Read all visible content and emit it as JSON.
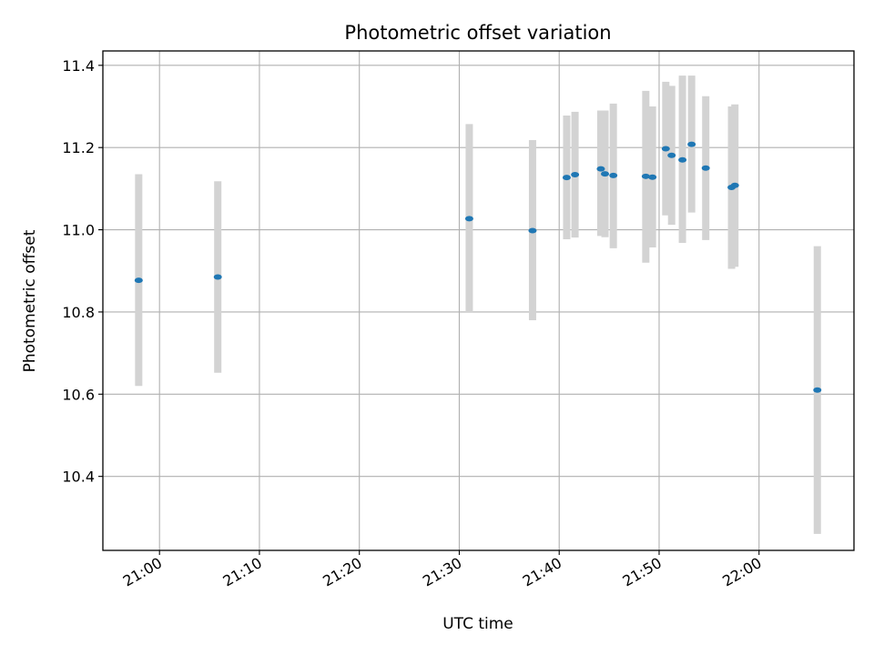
{
  "chart_data": {
    "type": "scatter",
    "title": "Photometric offset variation",
    "xlabel": "UTC time",
    "ylabel": "Photometric offset",
    "x_tick_labels": [
      "21:00",
      "21:10",
      "21:20",
      "21:30",
      "21:40",
      "21:50",
      "22:00"
    ],
    "y_tick_labels": [
      "10.4",
      "10.6",
      "10.8",
      "11.0",
      "11.2",
      "11.4"
    ],
    "y_ticks": [
      10.4,
      10.6,
      10.8,
      11.0,
      11.2,
      11.4
    ],
    "xlim": [
      "20:54:20",
      "22:09:30"
    ],
    "ylim": [
      10.22,
      11.435
    ],
    "grid": true,
    "marker_color": "#1f77b4",
    "errorbar_color": "#d3d3d3",
    "points": [
      {
        "time": "20:57:55",
        "value": 10.877,
        "low": 10.62,
        "high": 11.135
      },
      {
        "time": "21:05:50",
        "value": 10.885,
        "low": 10.652,
        "high": 11.118
      },
      {
        "time": "21:31:00",
        "value": 11.027,
        "low": 10.798,
        "high": 11.257
      },
      {
        "time": "21:37:20",
        "value": 10.998,
        "low": 10.78,
        "high": 11.218
      },
      {
        "time": "21:40:45",
        "value": 11.127,
        "low": 10.977,
        "high": 11.278
      },
      {
        "time": "21:41:35",
        "value": 11.134,
        "low": 10.981,
        "high": 11.287
      },
      {
        "time": "21:44:10",
        "value": 11.148,
        "low": 10.985,
        "high": 11.29
      },
      {
        "time": "21:44:35",
        "value": 11.136,
        "low": 10.982,
        "high": 11.29
      },
      {
        "time": "21:45:25",
        "value": 11.132,
        "low": 10.955,
        "high": 11.307
      },
      {
        "time": "21:48:40",
        "value": 11.13,
        "low": 10.92,
        "high": 11.338
      },
      {
        "time": "21:49:20",
        "value": 11.128,
        "low": 10.957,
        "high": 11.3
      },
      {
        "time": "21:50:40",
        "value": 11.197,
        "low": 11.035,
        "high": 11.36
      },
      {
        "time": "21:51:15",
        "value": 11.181,
        "low": 11.012,
        "high": 11.35
      },
      {
        "time": "21:52:20",
        "value": 11.17,
        "low": 10.968,
        "high": 11.375
      },
      {
        "time": "21:53:15",
        "value": 11.208,
        "low": 11.042,
        "high": 11.375
      },
      {
        "time": "21:54:40",
        "value": 11.15,
        "low": 10.975,
        "high": 11.325
      },
      {
        "time": "21:57:15",
        "value": 11.103,
        "low": 10.905,
        "high": 11.3
      },
      {
        "time": "21:57:35",
        "value": 11.108,
        "low": 10.91,
        "high": 11.305
      },
      {
        "time": "22:05:50",
        "value": 10.61,
        "low": 10.26,
        "high": 10.96
      }
    ]
  }
}
